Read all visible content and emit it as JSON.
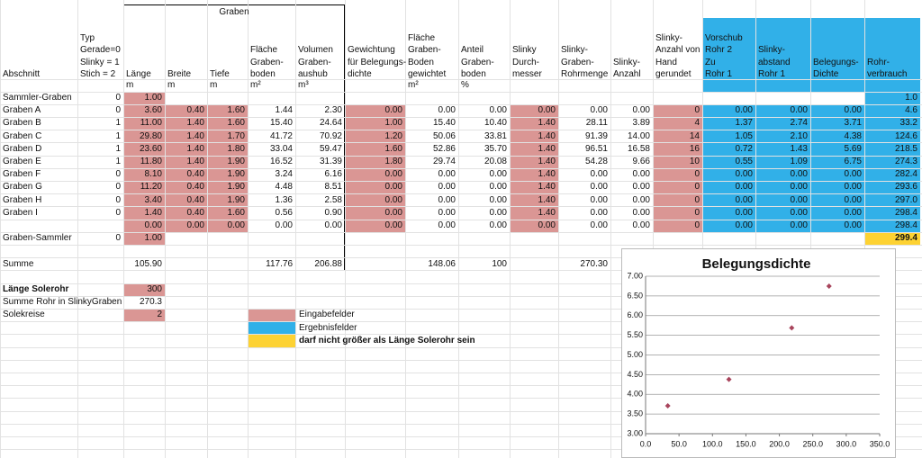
{
  "spreadsheet": {
    "group_header": "Graben",
    "columns": {
      "abschnitt": {
        "header": [
          "Abschnitt"
        ]
      },
      "typ": {
        "header": [
          "Typ",
          "Gerade=0",
          "Slinky = 1",
          "Stich  = 2"
        ]
      },
      "laenge": {
        "header": [
          "Länge"
        ],
        "unit": "m"
      },
      "breite": {
        "header": [
          "Breite"
        ],
        "unit": "m"
      },
      "tiefe": {
        "header": [
          "Tiefe"
        ],
        "unit": "m"
      },
      "flaeche": {
        "header": [
          "Fläche",
          "Graben-",
          "boden"
        ],
        "unit": "m²"
      },
      "volumen": {
        "header": [
          "Volumen",
          "Graben-",
          "aushub"
        ],
        "unit": "m³"
      },
      "gewichtung": {
        "header": [
          "Gewichtung",
          "für Belegungs-",
          "dichte"
        ]
      },
      "flaecheGew": {
        "header": [
          "Fläche",
          "Graben-",
          "Boden",
          "gewichtet"
        ],
        "unit": "m²"
      },
      "anteil": {
        "header": [
          "Anteil",
          "Graben-",
          "boden"
        ],
        "unit": "%"
      },
      "durchmesser": {
        "header": [
          "Slinky",
          "Durch-",
          "messer"
        ]
      },
      "rohrmenge": {
        "header": [
          "Slinky-",
          "Graben-",
          "Rohrmenge"
        ]
      },
      "anzahl": {
        "header": [
          "Slinky-",
          "Anzahl"
        ]
      },
      "gerundet": {
        "header": [
          "Slinky-",
          "Anzahl von",
          "Hand",
          "gerundet"
        ]
      },
      "vorschub": {
        "header": [
          "Vorschub",
          "Rohr 2",
          "Zu",
          "Rohr 1"
        ]
      },
      "abstand": {
        "header": [
          "Slinky-",
          "abstand",
          "Rohr 1"
        ]
      },
      "dichte": {
        "header": [
          "Belegungs-",
          "Dichte"
        ]
      },
      "rohr": {
        "header": [
          "Rohr-",
          "verbrauch"
        ]
      }
    },
    "rows": [
      {
        "abschnitt": "Sammler-Graben",
        "typ": "0",
        "laenge": "1.00",
        "rohr": "1.0"
      },
      {
        "abschnitt": "Graben A",
        "typ": "0",
        "laenge": "3.60",
        "breite": "0.40",
        "tiefe": "1.60",
        "flaeche": "1.44",
        "volumen": "2.30",
        "gewichtung": "0.00",
        "flaecheGew": "0.00",
        "anteil": "0.00",
        "durchmesser": "0.00",
        "rohrmenge": "0.00",
        "anzahl": "0.00",
        "gerundet": "0",
        "vorschub": "0.00",
        "abstand": "0.00",
        "dichte": "0.00",
        "rohr": "4.6"
      },
      {
        "abschnitt": "Graben B",
        "typ": "1",
        "laenge": "11.00",
        "breite": "1.40",
        "tiefe": "1.60",
        "flaeche": "15.40",
        "volumen": "24.64",
        "gewichtung": "1.00",
        "flaecheGew": "15.40",
        "anteil": "10.40",
        "durchmesser": "1.40",
        "rohrmenge": "28.11",
        "anzahl": "3.89",
        "gerundet": "4",
        "vorschub": "1.37",
        "abstand": "2.74",
        "dichte": "3.71",
        "rohr": "33.2"
      },
      {
        "abschnitt": "Graben C",
        "typ": "1",
        "laenge": "29.80",
        "breite": "1.40",
        "tiefe": "1.70",
        "flaeche": "41.72",
        "volumen": "70.92",
        "gewichtung": "1.20",
        "flaecheGew": "50.06",
        "anteil": "33.81",
        "durchmesser": "1.40",
        "rohrmenge": "91.39",
        "anzahl": "14.00",
        "gerundet": "14",
        "vorschub": "1.05",
        "abstand": "2.10",
        "dichte": "4.38",
        "rohr": "124.6"
      },
      {
        "abschnitt": "Graben D",
        "typ": "1",
        "laenge": "23.60",
        "breite": "1.40",
        "tiefe": "1.80",
        "flaeche": "33.04",
        "volumen": "59.47",
        "gewichtung": "1.60",
        "flaecheGew": "52.86",
        "anteil": "35.70",
        "durchmesser": "1.40",
        "rohrmenge": "96.51",
        "anzahl": "16.58",
        "gerundet": "16",
        "vorschub": "0.72",
        "abstand": "1.43",
        "dichte": "5.69",
        "rohr": "218.5"
      },
      {
        "abschnitt": "Graben E",
        "typ": "1",
        "laenge": "11.80",
        "breite": "1.40",
        "tiefe": "1.90",
        "flaeche": "16.52",
        "volumen": "31.39",
        "gewichtung": "1.80",
        "flaecheGew": "29.74",
        "anteil": "20.08",
        "durchmesser": "1.40",
        "rohrmenge": "54.28",
        "anzahl": "9.66",
        "gerundet": "10",
        "vorschub": "0.55",
        "abstand": "1.09",
        "dichte": "6.75",
        "rohr": "274.3"
      },
      {
        "abschnitt": "Graben F",
        "typ": "0",
        "laenge": "8.10",
        "breite": "0.40",
        "tiefe": "1.90",
        "flaeche": "3.24",
        "volumen": "6.16",
        "gewichtung": "0.00",
        "flaecheGew": "0.00",
        "anteil": "0.00",
        "durchmesser": "1.40",
        "rohrmenge": "0.00",
        "anzahl": "0.00",
        "gerundet": "0",
        "vorschub": "0.00",
        "abstand": "0.00",
        "dichte": "0.00",
        "rohr": "282.4"
      },
      {
        "abschnitt": "Graben G",
        "typ": "0",
        "laenge": "11.20",
        "breite": "0.40",
        "tiefe": "1.90",
        "flaeche": "4.48",
        "volumen": "8.51",
        "gewichtung": "0.00",
        "flaecheGew": "0.00",
        "anteil": "0.00",
        "durchmesser": "1.40",
        "rohrmenge": "0.00",
        "anzahl": "0.00",
        "gerundet": "0",
        "vorschub": "0.00",
        "abstand": "0.00",
        "dichte": "0.00",
        "rohr": "293.6"
      },
      {
        "abschnitt": "Graben H",
        "typ": "0",
        "laenge": "3.40",
        "breite": "0.40",
        "tiefe": "1.90",
        "flaeche": "1.36",
        "volumen": "2.58",
        "gewichtung": "0.00",
        "flaecheGew": "0.00",
        "anteil": "0.00",
        "durchmesser": "1.40",
        "rohrmenge": "0.00",
        "anzahl": "0.00",
        "gerundet": "0",
        "vorschub": "0.00",
        "abstand": "0.00",
        "dichte": "0.00",
        "rohr": "297.0"
      },
      {
        "abschnitt": "Graben I",
        "typ": "0",
        "laenge": "1.40",
        "breite": "0.40",
        "tiefe": "1.60",
        "flaeche": "0.56",
        "volumen": "0.90",
        "gewichtung": "0.00",
        "flaecheGew": "0.00",
        "anteil": "0.00",
        "durchmesser": "1.40",
        "rohrmenge": "0.00",
        "anzahl": "0.00",
        "gerundet": "0",
        "vorschub": "0.00",
        "abstand": "0.00",
        "dichte": "0.00",
        "rohr": "298.4"
      },
      {
        "laenge": "0.00",
        "breite": "0.00",
        "tiefe": "0.00",
        "flaeche": "0.00",
        "volumen": "0.00",
        "gewichtung": "0.00",
        "flaecheGew": "0.00",
        "anteil": "0.00",
        "durchmesser": "0.00",
        "rohrmenge": "0.00",
        "anzahl": "0.00",
        "gerundet": "0",
        "vorschub": "0.00",
        "abstand": "0.00",
        "dichte": "0.00",
        "rohr": "298.4"
      },
      {
        "abschnitt": "Graben-Sammler",
        "typ": "0",
        "laenge": "1.00",
        "rohr": "299.4"
      },
      {
        "abschnitt": "Summe",
        "laenge": "105.90",
        "flaeche": "117.76",
        "volumen": "206.88",
        "flaecheGew": "148.06",
        "anteil": "100",
        "rohrmenge": "270.30"
      }
    ],
    "extras": [
      {
        "label": "Länge Solerohr",
        "value": "300"
      },
      {
        "label": "Summe Rohr in SlinkyGraben",
        "value": "270.3"
      },
      {
        "label": "Solekreise",
        "value": "2"
      }
    ],
    "legend": [
      "Eingabefelder",
      "Ergebnisfelder",
      "darf nicht größer als Länge Solerohr sein"
    ]
  },
  "chart_data": {
    "type": "scatter",
    "title": "Belegungsdichte",
    "x": [
      33.2,
      124.6,
      218.5,
      274.3
    ],
    "values": [
      3.71,
      4.38,
      5.69,
      6.75
    ],
    "color": "#a8445c",
    "xlim": [
      0,
      350
    ],
    "ylim": [
      3,
      7
    ],
    "grid": true,
    "xticks": [
      {
        "value": 0,
        "label": "0.0"
      },
      {
        "value": 50,
        "label": "50.0"
      },
      {
        "value": 100,
        "label": "100.0"
      },
      {
        "value": 150,
        "label": "150.0"
      },
      {
        "value": 200,
        "label": "200.0"
      },
      {
        "value": 250,
        "label": "250.0"
      },
      {
        "value": 300,
        "label": "300.0"
      },
      {
        "value": 350,
        "label": "350.0"
      }
    ],
    "yticks": [
      {
        "value": 3,
        "label": "3.00"
      },
      {
        "value": 3.5,
        "label": "3.50"
      },
      {
        "value": 4,
        "label": "4.00"
      },
      {
        "value": 4.5,
        "label": "4.50"
      },
      {
        "value": 5,
        "label": "5.00"
      },
      {
        "value": 5.5,
        "label": "5.50"
      },
      {
        "value": 6,
        "label": "6.00"
      },
      {
        "value": 6.5,
        "label": "6.50"
      },
      {
        "value": 7,
        "label": "7.00"
      }
    ]
  }
}
